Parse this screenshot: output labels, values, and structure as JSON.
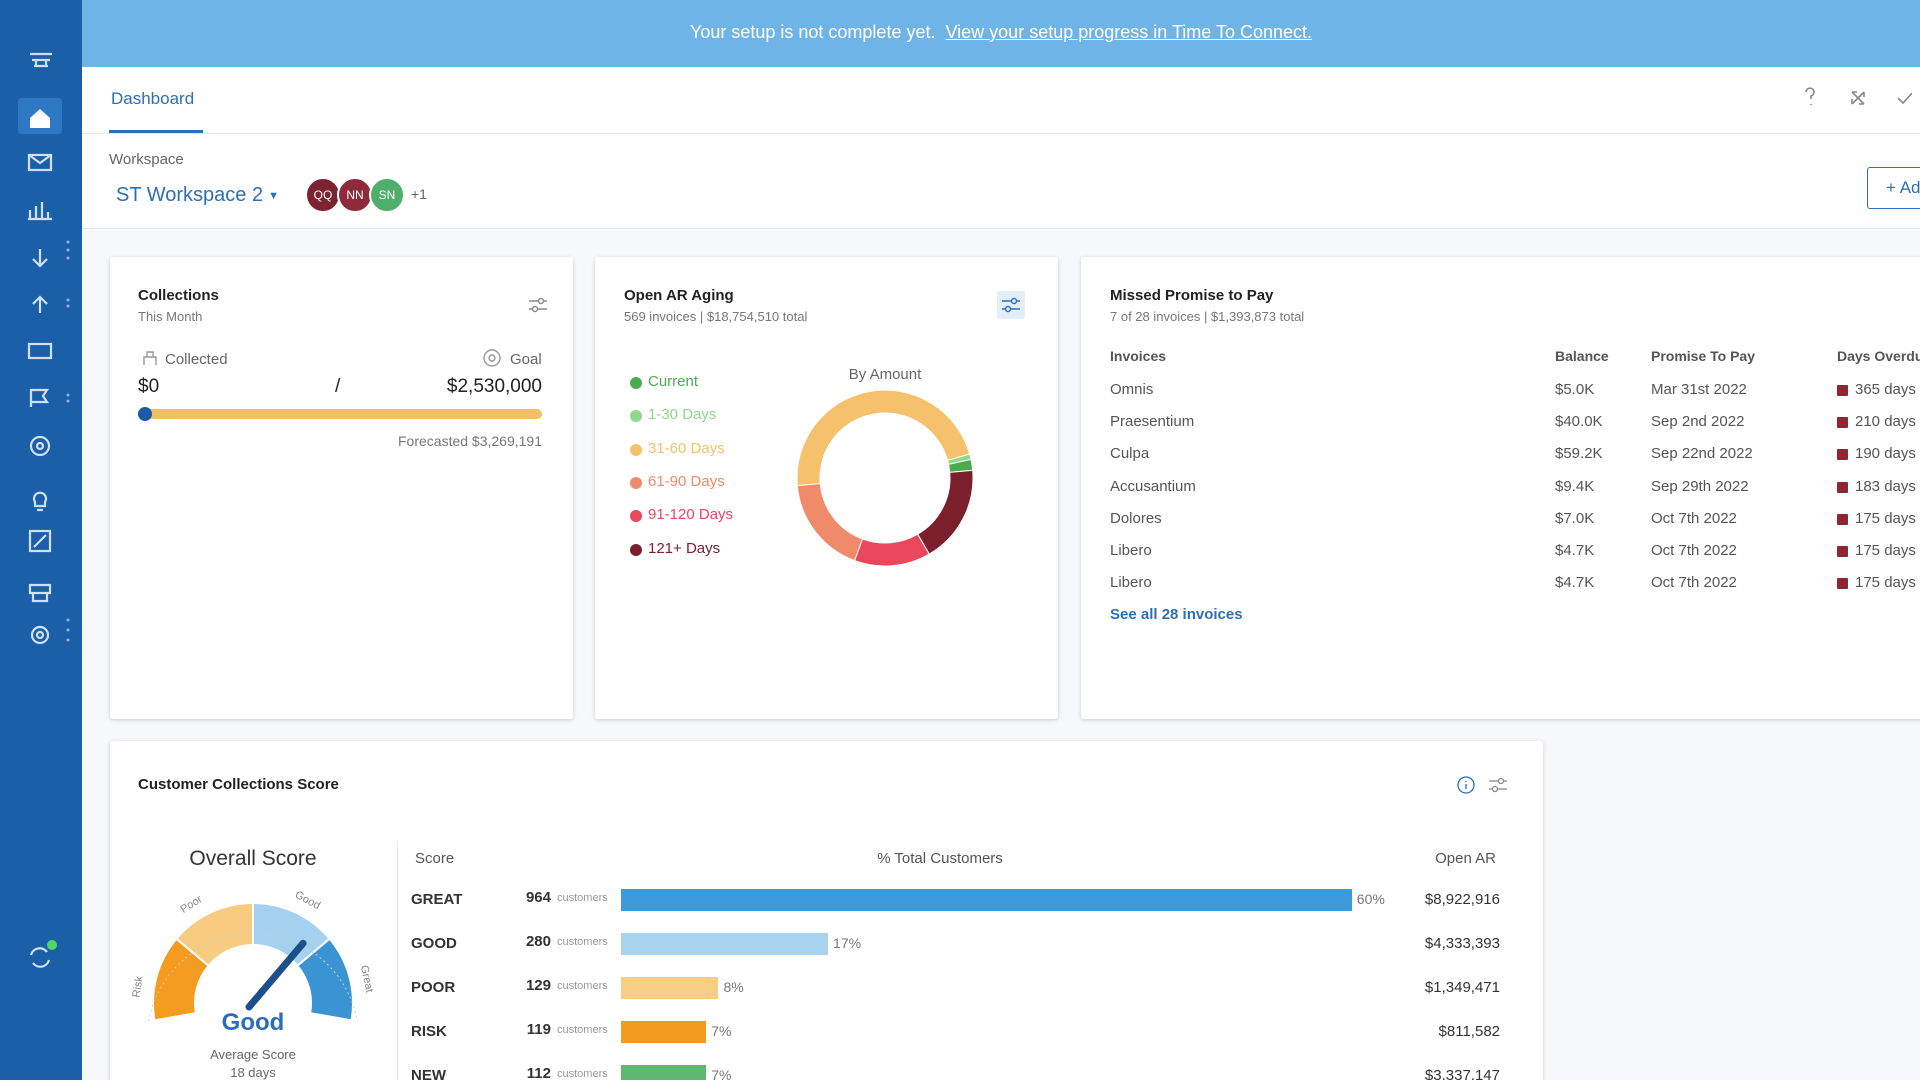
{
  "banner": {
    "text": "Your setup is not complete yet.",
    "link": "View your setup progress in Time To Connect."
  },
  "tabs": [
    "Dashboard"
  ],
  "workspace": {
    "label": "Workspace",
    "name": "ST Workspace 2",
    "members": [
      {
        "initials": "QQ",
        "color": "#7b2331"
      },
      {
        "initials": "NN",
        "color": "#8e2b3b"
      },
      {
        "initials": "SN",
        "color": "#4fae6c"
      }
    ],
    "more": "+1",
    "add_button": "+ Add"
  },
  "collections": {
    "title": "Collections",
    "subtitle": "This Month",
    "collected_label": "Collected",
    "goal_label": "Goal",
    "collected": "$0",
    "separator": "/",
    "goal": "$2,530,000",
    "forecast": "Forecasted $3,269,191"
  },
  "open_ar_aging": {
    "title": "Open AR Aging",
    "subtitle": "569 invoices | $18,754,510 total",
    "chart": {
      "type": "donut",
      "title": "By Amount",
      "categories": [
        "Current",
        "1-30 Days",
        "31-60 Days",
        "61-90 Days",
        "91-120 Days",
        "121+ Days"
      ],
      "values": [
        2,
        1,
        47,
        18,
        14,
        18
      ],
      "colors": [
        "#49ad4f",
        "#8fd88a",
        "#f5c16c",
        "#ef8a6a",
        "#e9475c",
        "#7a1f2b"
      ]
    }
  },
  "missed_promise": {
    "title": "Missed Promise to Pay",
    "subtitle": "7 of 28 invoices | $1,393,873 total",
    "columns": [
      "Invoices",
      "Balance",
      "Promise To Pay",
      "Days Overdue"
    ],
    "rows": [
      [
        "Omnis",
        "$5.0K",
        "Mar 31st 2022",
        "365 days"
      ],
      [
        "Praesentium",
        "$40.0K",
        "Sep 2nd 2022",
        "210 days"
      ],
      [
        "Culpa",
        "$59.2K",
        "Sep 22nd 2022",
        "190 days"
      ],
      [
        "Accusantium",
        "$9.4K",
        "Sep 29th 2022",
        "183 days"
      ],
      [
        "Dolores",
        "$7.0K",
        "Oct 7th 2022",
        "175 days"
      ],
      [
        "Libero",
        "$4.7K",
        "Oct 7th 2022",
        "175 days"
      ],
      [
        "Libero",
        "$4.7K",
        "Oct 7th 2022",
        "175 days"
      ]
    ],
    "link": "See all 28 invoices"
  },
  "score": {
    "title": "Customer Collections Score",
    "overall_title": "Overall Score",
    "gauge_labels": [
      "Risk",
      "Poor",
      "Good",
      "Great"
    ],
    "result": "Good",
    "average_label": "Average Score",
    "average": "18 days",
    "columns": [
      "Score",
      "% Total Customers",
      "Open AR"
    ],
    "rows": [
      {
        "score": "GREAT",
        "customers": 964,
        "unit": "customers",
        "percent": 60,
        "percent_label": "60%",
        "open_ar": "$8,922,916",
        "color": "#3b9ad9"
      },
      {
        "score": "GOOD",
        "customers": 280,
        "unit": "customers",
        "percent": 17,
        "percent_label": "17%",
        "open_ar": "$4,333,393",
        "color": "#a8d4ef"
      },
      {
        "score": "POOR",
        "customers": 129,
        "unit": "customers",
        "percent": 8,
        "percent_label": "8%",
        "open_ar": "$1,349,471",
        "color": "#f8cd85"
      },
      {
        "score": "RISK",
        "customers": 119,
        "unit": "customers",
        "percent": 7,
        "percent_label": "7%",
        "open_ar": "$811,582",
        "color": "#f29b21"
      },
      {
        "score": "NEW",
        "customers": 112,
        "unit": "customers",
        "percent": 7,
        "percent_label": "7%",
        "open_ar": "$3,337,147",
        "color": "#5fb86f"
      }
    ]
  }
}
